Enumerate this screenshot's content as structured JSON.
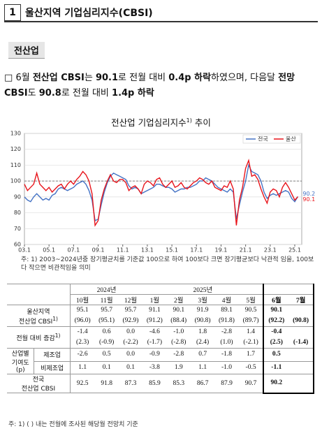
{
  "header": {
    "number": "1",
    "title": "울산지역 기업심리지수(CBSI)"
  },
  "section": "전산업",
  "paragraph": {
    "bullet": "□",
    "segments": [
      {
        "text": "6월 ",
        "bold": false
      },
      {
        "text": "전산업 CBSI",
        "bold": true
      },
      {
        "text": "는 ",
        "bold": false
      },
      {
        "text": "90.1",
        "bold": true
      },
      {
        "text": "로 전월 대비 ",
        "bold": false
      },
      {
        "text": "0.4p 하락",
        "bold": true
      },
      {
        "text": "하였으며, 다음달 ",
        "bold": false
      },
      {
        "text": "전망 CBSI",
        "bold": true
      },
      {
        "text": "도 ",
        "bold": false
      },
      {
        "text": "90.8",
        "bold": true
      },
      {
        "text": "로 전월 대비 ",
        "bold": false
      },
      {
        "text": "1.4p 하락",
        "bold": true
      }
    ]
  },
  "chart_data": {
    "type": "line",
    "title": "전산업 기업심리지수",
    "title_note": "1)",
    "title_end": "추이",
    "x": [
      "03.1",
      "03.4",
      "03.7",
      "03.10",
      "04.1",
      "04.4",
      "04.7",
      "04.10",
      "05.1",
      "05.4",
      "05.7",
      "05.10",
      "06.1",
      "06.4",
      "06.7",
      "06.10",
      "07.1",
      "07.4",
      "07.7",
      "07.10",
      "08.1",
      "08.4",
      "08.7",
      "08.10",
      "09.1",
      "09.4",
      "09.7",
      "09.10",
      "10.1",
      "10.4",
      "10.7",
      "10.10",
      "11.1",
      "11.4",
      "11.7",
      "11.10",
      "12.1",
      "12.4",
      "12.7",
      "12.10",
      "13.1",
      "13.4",
      "13.7",
      "13.10",
      "14.1",
      "14.4",
      "14.7",
      "14.10",
      "15.1",
      "15.4",
      "15.7",
      "15.10",
      "16.1",
      "16.4",
      "16.7",
      "16.10",
      "17.1",
      "17.4",
      "17.7",
      "17.10",
      "18.1",
      "18.4",
      "18.7",
      "18.10",
      "19.1",
      "19.4",
      "19.7",
      "19.10",
      "20.1",
      "20.4",
      "20.7",
      "20.10",
      "21.1",
      "21.4",
      "21.7",
      "21.10",
      "22.1",
      "22.4",
      "22.7",
      "22.10",
      "23.1",
      "23.4",
      "23.7",
      "23.10",
      "24.1",
      "24.4",
      "24.7",
      "24.10",
      "25.1",
      "25.4"
    ],
    "series": [
      {
        "name": "전국",
        "color": "#4472c4",
        "values": [
          90,
          88,
          87,
          90,
          92,
          90,
          88,
          89,
          88,
          91,
          92,
          95,
          96,
          95,
          94,
          95,
          96,
          98,
          99,
          100,
          98,
          94,
          88,
          75,
          76,
          85,
          93,
          99,
          103,
          105,
          104,
          103,
          102,
          101,
          97,
          95,
          96,
          95,
          92,
          93,
          94,
          95,
          96,
          98,
          98,
          97,
          96,
          96,
          95,
          93,
          94,
          95,
          95,
          96,
          96,
          97,
          98,
          100,
          100,
          102,
          101,
          100,
          98,
          96,
          95,
          94,
          93,
          95,
          93,
          76,
          85,
          93,
          100,
          110,
          106,
          105,
          104,
          100,
          93,
          89,
          91,
          92,
          91,
          92,
          93,
          94,
          93,
          89,
          87,
          90.2
        ]
      },
      {
        "name": "울산",
        "color": "#e8141b",
        "values": [
          98,
          94,
          96,
          98,
          105,
          98,
          96,
          94,
          96,
          93,
          95,
          97,
          98,
          95,
          98,
          100,
          98,
          101,
          103,
          106,
          104,
          100,
          92,
          72,
          75,
          88,
          95,
          100,
          104,
          100,
          99,
          101,
          101,
          99,
          94,
          96,
          97,
          95,
          92,
          98,
          100,
          99,
          97,
          101,
          102,
          98,
          96,
          98,
          100,
          96,
          97,
          99,
          96,
          95,
          97,
          99,
          100,
          102,
          101,
          99,
          98,
          100,
          96,
          95,
          94,
          97,
          96,
          100,
          95,
          72,
          88,
          96,
          108,
          113,
          103,
          104,
          101,
          95,
          90,
          86,
          93,
          95,
          94,
          90,
          96,
          99,
          96,
          92,
          88,
          90.1
        ]
      }
    ],
    "xticks": [
      "03.1",
      "05.1",
      "07.1",
      "09.1",
      "11.1",
      "13.1",
      "15.1",
      "17.1",
      "19.1",
      "21.1",
      "23.1",
      "25.1"
    ],
    "ylim": [
      60,
      130
    ],
    "yticks": [
      60,
      70,
      80,
      90,
      100,
      110,
      120,
      130
    ],
    "hline": 100,
    "grid": true,
    "legend": "upper right",
    "note": "주: 1) 2003~2024년중 장기평균치를 기준값 100으로 하여 100보다 크면 장기평균보다 낙관적 임을, 100보다 작으면 비관적임을 의미"
  },
  "table": {
    "years": [
      "2024년",
      "2025년"
    ],
    "months": [
      "10월",
      "11월",
      "12월",
      "1월",
      "2월",
      "3월",
      "4월",
      "5월",
      "6월",
      "7월"
    ],
    "rows": [
      {
        "label": "울산지역",
        "label2": "전산업 CBSI",
        "note": "1)",
        "values": [
          "95.1",
          "95.7",
          "95.7",
          "91.1",
          "90.1",
          "91.9",
          "89.1",
          "90.5",
          "90.1",
          null
        ],
        "forecast": [
          "(96.0)",
          "(95.1)",
          "(92.9)",
          "(91.2)",
          "(88.4)",
          "(90.8)",
          "(91.8)",
          "(89.7)",
          "(92.2)",
          "(90.8)"
        ]
      },
      {
        "label": "전월 대비 증감",
        "note": "1)",
        "values": [
          "-1.4",
          "0.6",
          "0.0",
          "-4.6",
          "-1.0",
          "1.8",
          "-2.8",
          "1.4",
          "-0.4",
          null
        ],
        "forecast": [
          "(2.3)",
          "(-0.9)",
          "(-2.2)",
          "(-1.7)",
          "(-2.8)",
          "(2.4)",
          "(1.0)",
          "(-2.1)",
          "(2.5)",
          "(-1.4)"
        ]
      },
      {
        "group": [
          "산업별",
          "기여도",
          "(p)"
        ],
        "label": "제조업",
        "values": [
          "-2.6",
          "0.5",
          "0.0",
          "-0.9",
          "-2.8",
          "0.7",
          "-1.8",
          "1.7",
          "0.5",
          null
        ]
      },
      {
        "label": "비제조업",
        "values": [
          "1.1",
          "0.1",
          "0.1",
          "-3.8",
          "1.9",
          "1.1",
          "-1.0",
          "-0.5",
          "-1.1",
          null
        ]
      },
      {
        "label": "전국",
        "label2": "전산업 CBSI",
        "values": [
          "92.5",
          "91.8",
          "87.3",
          "85.9",
          "85.3",
          "86.7",
          "87.9",
          "90.7",
          "90.2",
          null
        ]
      }
    ],
    "note": "주: 1) (   ) 내는 전월에 조사된 해당월 전망치 기준"
  }
}
